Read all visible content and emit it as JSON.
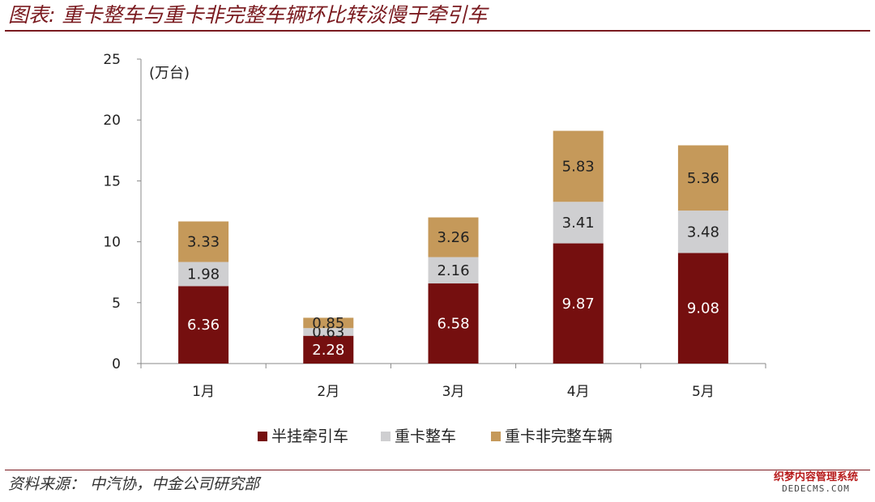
{
  "header": {
    "title": "图表: 重卡整车与重卡非完整车辆环比转淡慢于牵引车"
  },
  "footer": {
    "source": "资料来源：  中汽协，中金公司研究部"
  },
  "watermark": {
    "line1": "织梦内容管理系统",
    "line2": "DEDECMS.COM"
  },
  "chart_data": {
    "type": "bar",
    "stacked": true,
    "categories": [
      "1月",
      "2月",
      "3月",
      "4月",
      "5月"
    ],
    "series": [
      {
        "name": "半挂牵引车",
        "values": [
          6.36,
          2.28,
          6.58,
          9.87,
          9.08
        ],
        "color": "#750f0f"
      },
      {
        "name": "重卡整车",
        "values": [
          1.98,
          0.63,
          2.16,
          3.41,
          3.48
        ],
        "color": "#cfcfd1"
      },
      {
        "name": "重卡非完整车辆",
        "values": [
          3.33,
          0.85,
          3.26,
          5.83,
          5.36
        ],
        "color": "#c5995a"
      }
    ],
    "ylabel": "(万台)",
    "ylim": [
      0,
      25
    ],
    "yticks": [
      "0",
      "5",
      "10",
      "15",
      "20",
      "25"
    ],
    "legend_position": "bottom",
    "grid": false
  }
}
